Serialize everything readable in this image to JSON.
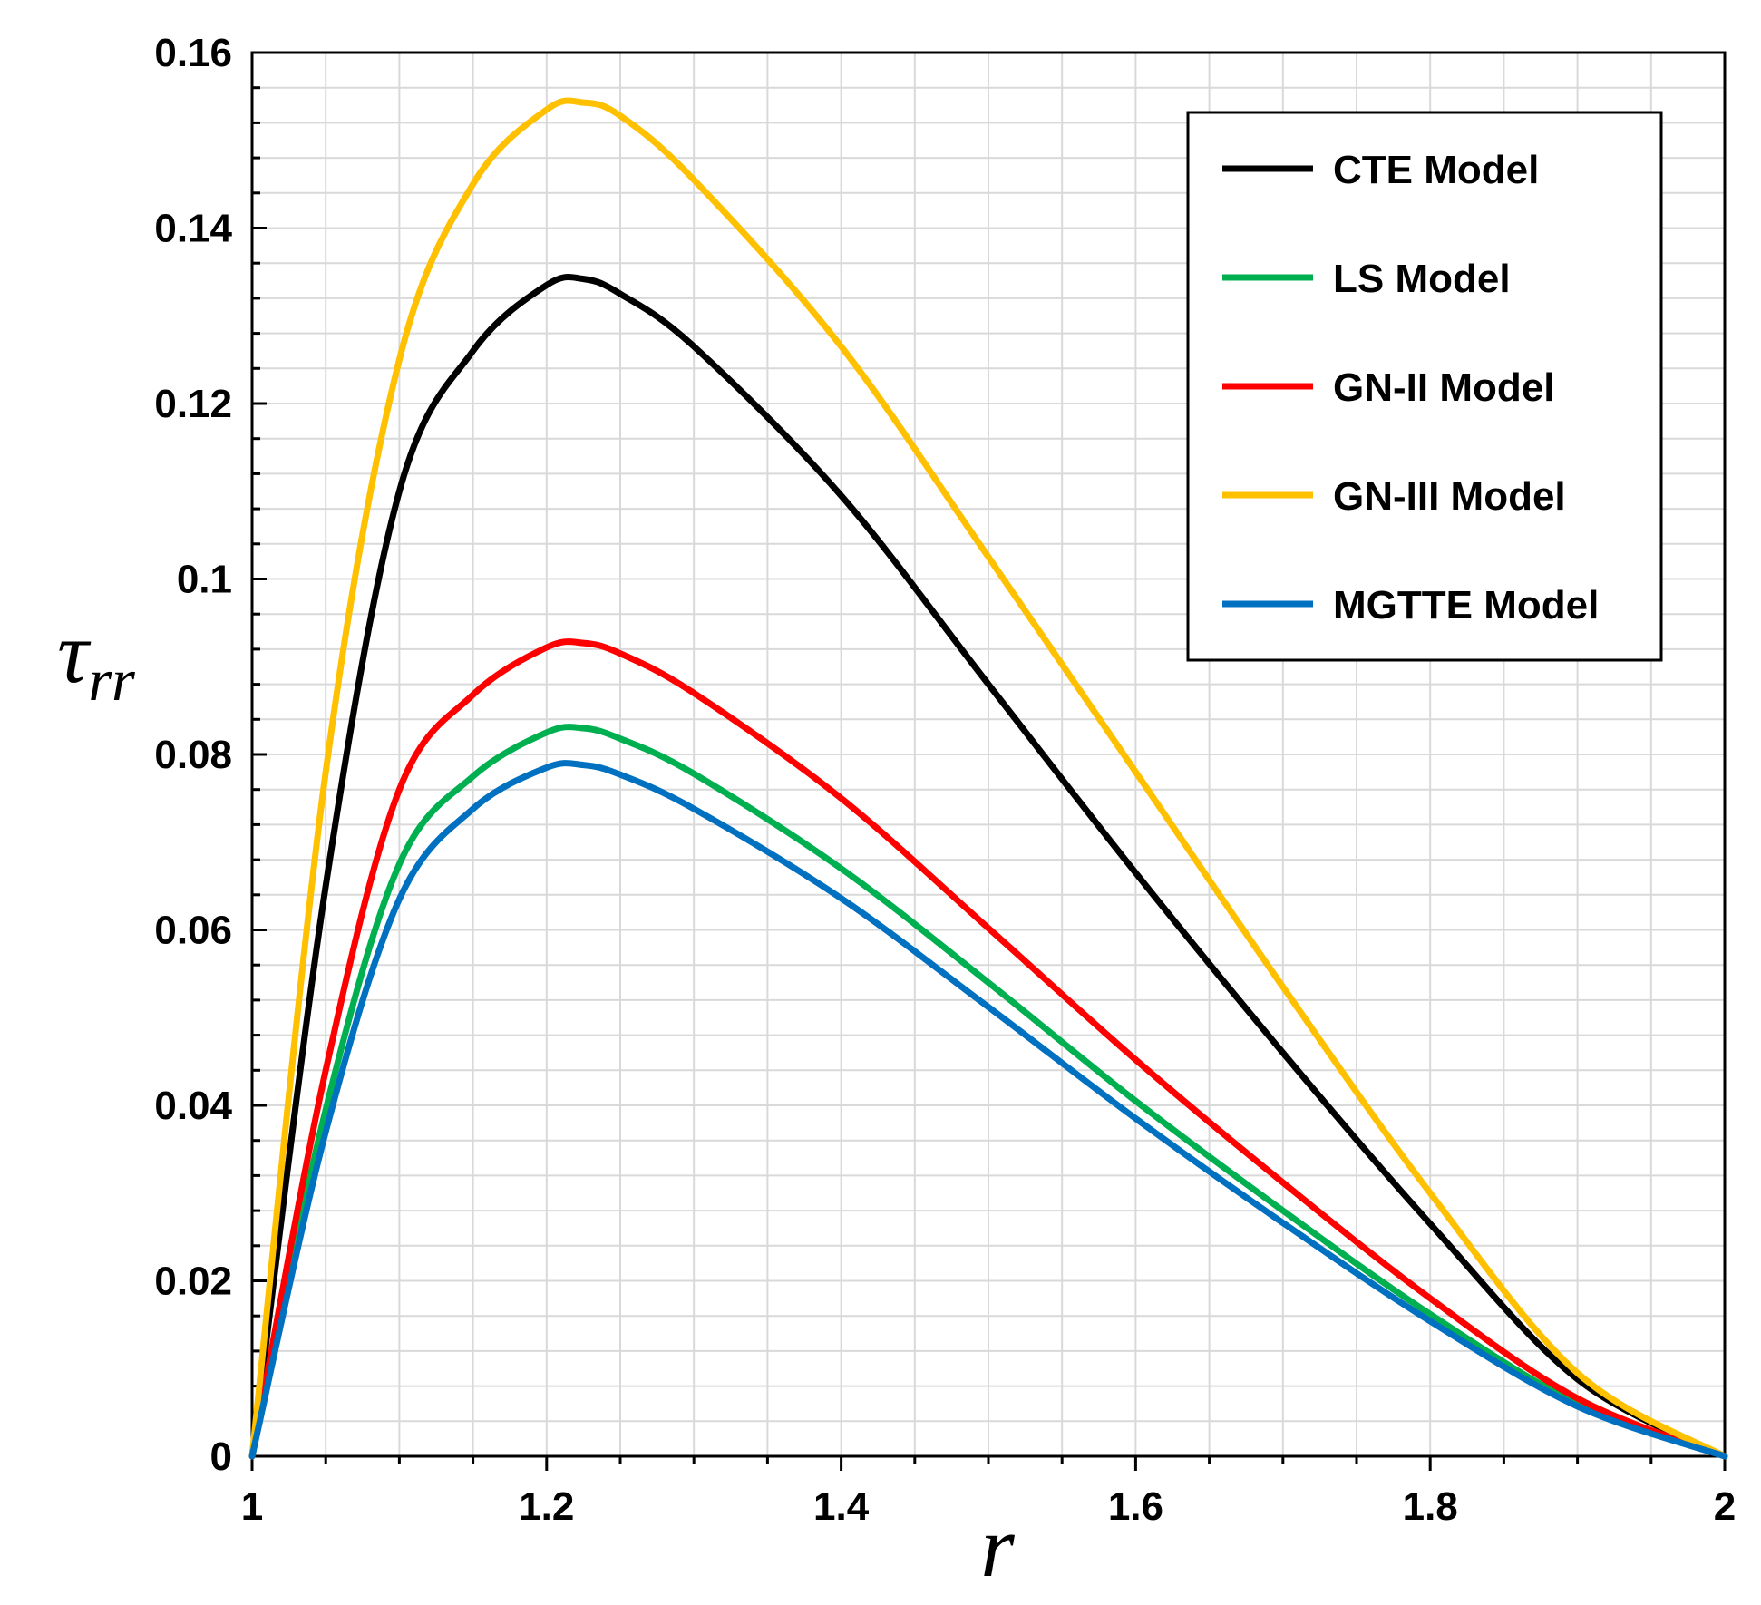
{
  "chart_data": {
    "type": "line",
    "title": "",
    "xlabel": "r",
    "ylabel": "τ",
    "ylabel_subscript": "rr",
    "xlim": [
      1,
      2
    ],
    "ylim": [
      0,
      0.16
    ],
    "x_ticks": [
      "1",
      "1.2",
      "1.4",
      "1.6",
      "1.8",
      "2"
    ],
    "y_ticks": [
      "0",
      "0.02",
      "0.04",
      "0.06",
      "0.08",
      "0.1",
      "0.12",
      "0.14",
      "0.16"
    ],
    "grid": true,
    "legend_position": "top-right",
    "x": [
      1.0,
      1.05,
      1.1,
      1.15,
      1.2,
      1.225,
      1.25,
      1.3,
      1.4,
      1.5,
      1.6,
      1.7,
      1.8,
      1.9,
      2.0
    ],
    "series": [
      {
        "name": "CTE Model",
        "color": "#000000",
        "values": [
          0.0,
          0.065,
          0.11,
          0.126,
          0.1335,
          0.1342,
          0.1325,
          0.1265,
          0.1095,
          0.088,
          0.0665,
          0.046,
          0.0265,
          0.0088,
          0.0
        ]
      },
      {
        "name": "LS Model",
        "color": "#00b050",
        "values": [
          0.0,
          0.0395,
          0.0675,
          0.0775,
          0.0825,
          0.083,
          0.0818,
          0.0778,
          0.067,
          0.054,
          0.0405,
          0.028,
          0.0162,
          0.006,
          0.0
        ]
      },
      {
        "name": "GN-II Model",
        "color": "#ff0000",
        "values": [
          0.0,
          0.044,
          0.076,
          0.0868,
          0.0922,
          0.0927,
          0.0915,
          0.087,
          0.075,
          0.0602,
          0.0452,
          0.0312,
          0.018,
          0.0066,
          0.0
        ]
      },
      {
        "name": "GN-III Model",
        "color": "#ffc000",
        "values": [
          0.0,
          0.078,
          0.125,
          0.145,
          0.1535,
          0.1543,
          0.1528,
          0.1455,
          0.1265,
          0.1025,
          0.078,
          0.0535,
          0.03,
          0.0095,
          0.0
        ]
      },
      {
        "name": "MGTTE Model",
        "color": "#0070c0",
        "values": [
          0.0,
          0.037,
          0.0635,
          0.0738,
          0.0785,
          0.0788,
          0.0777,
          0.0738,
          0.0636,
          0.0512,
          0.0385,
          0.0266,
          0.0154,
          0.0057,
          0.0
        ]
      }
    ]
  }
}
